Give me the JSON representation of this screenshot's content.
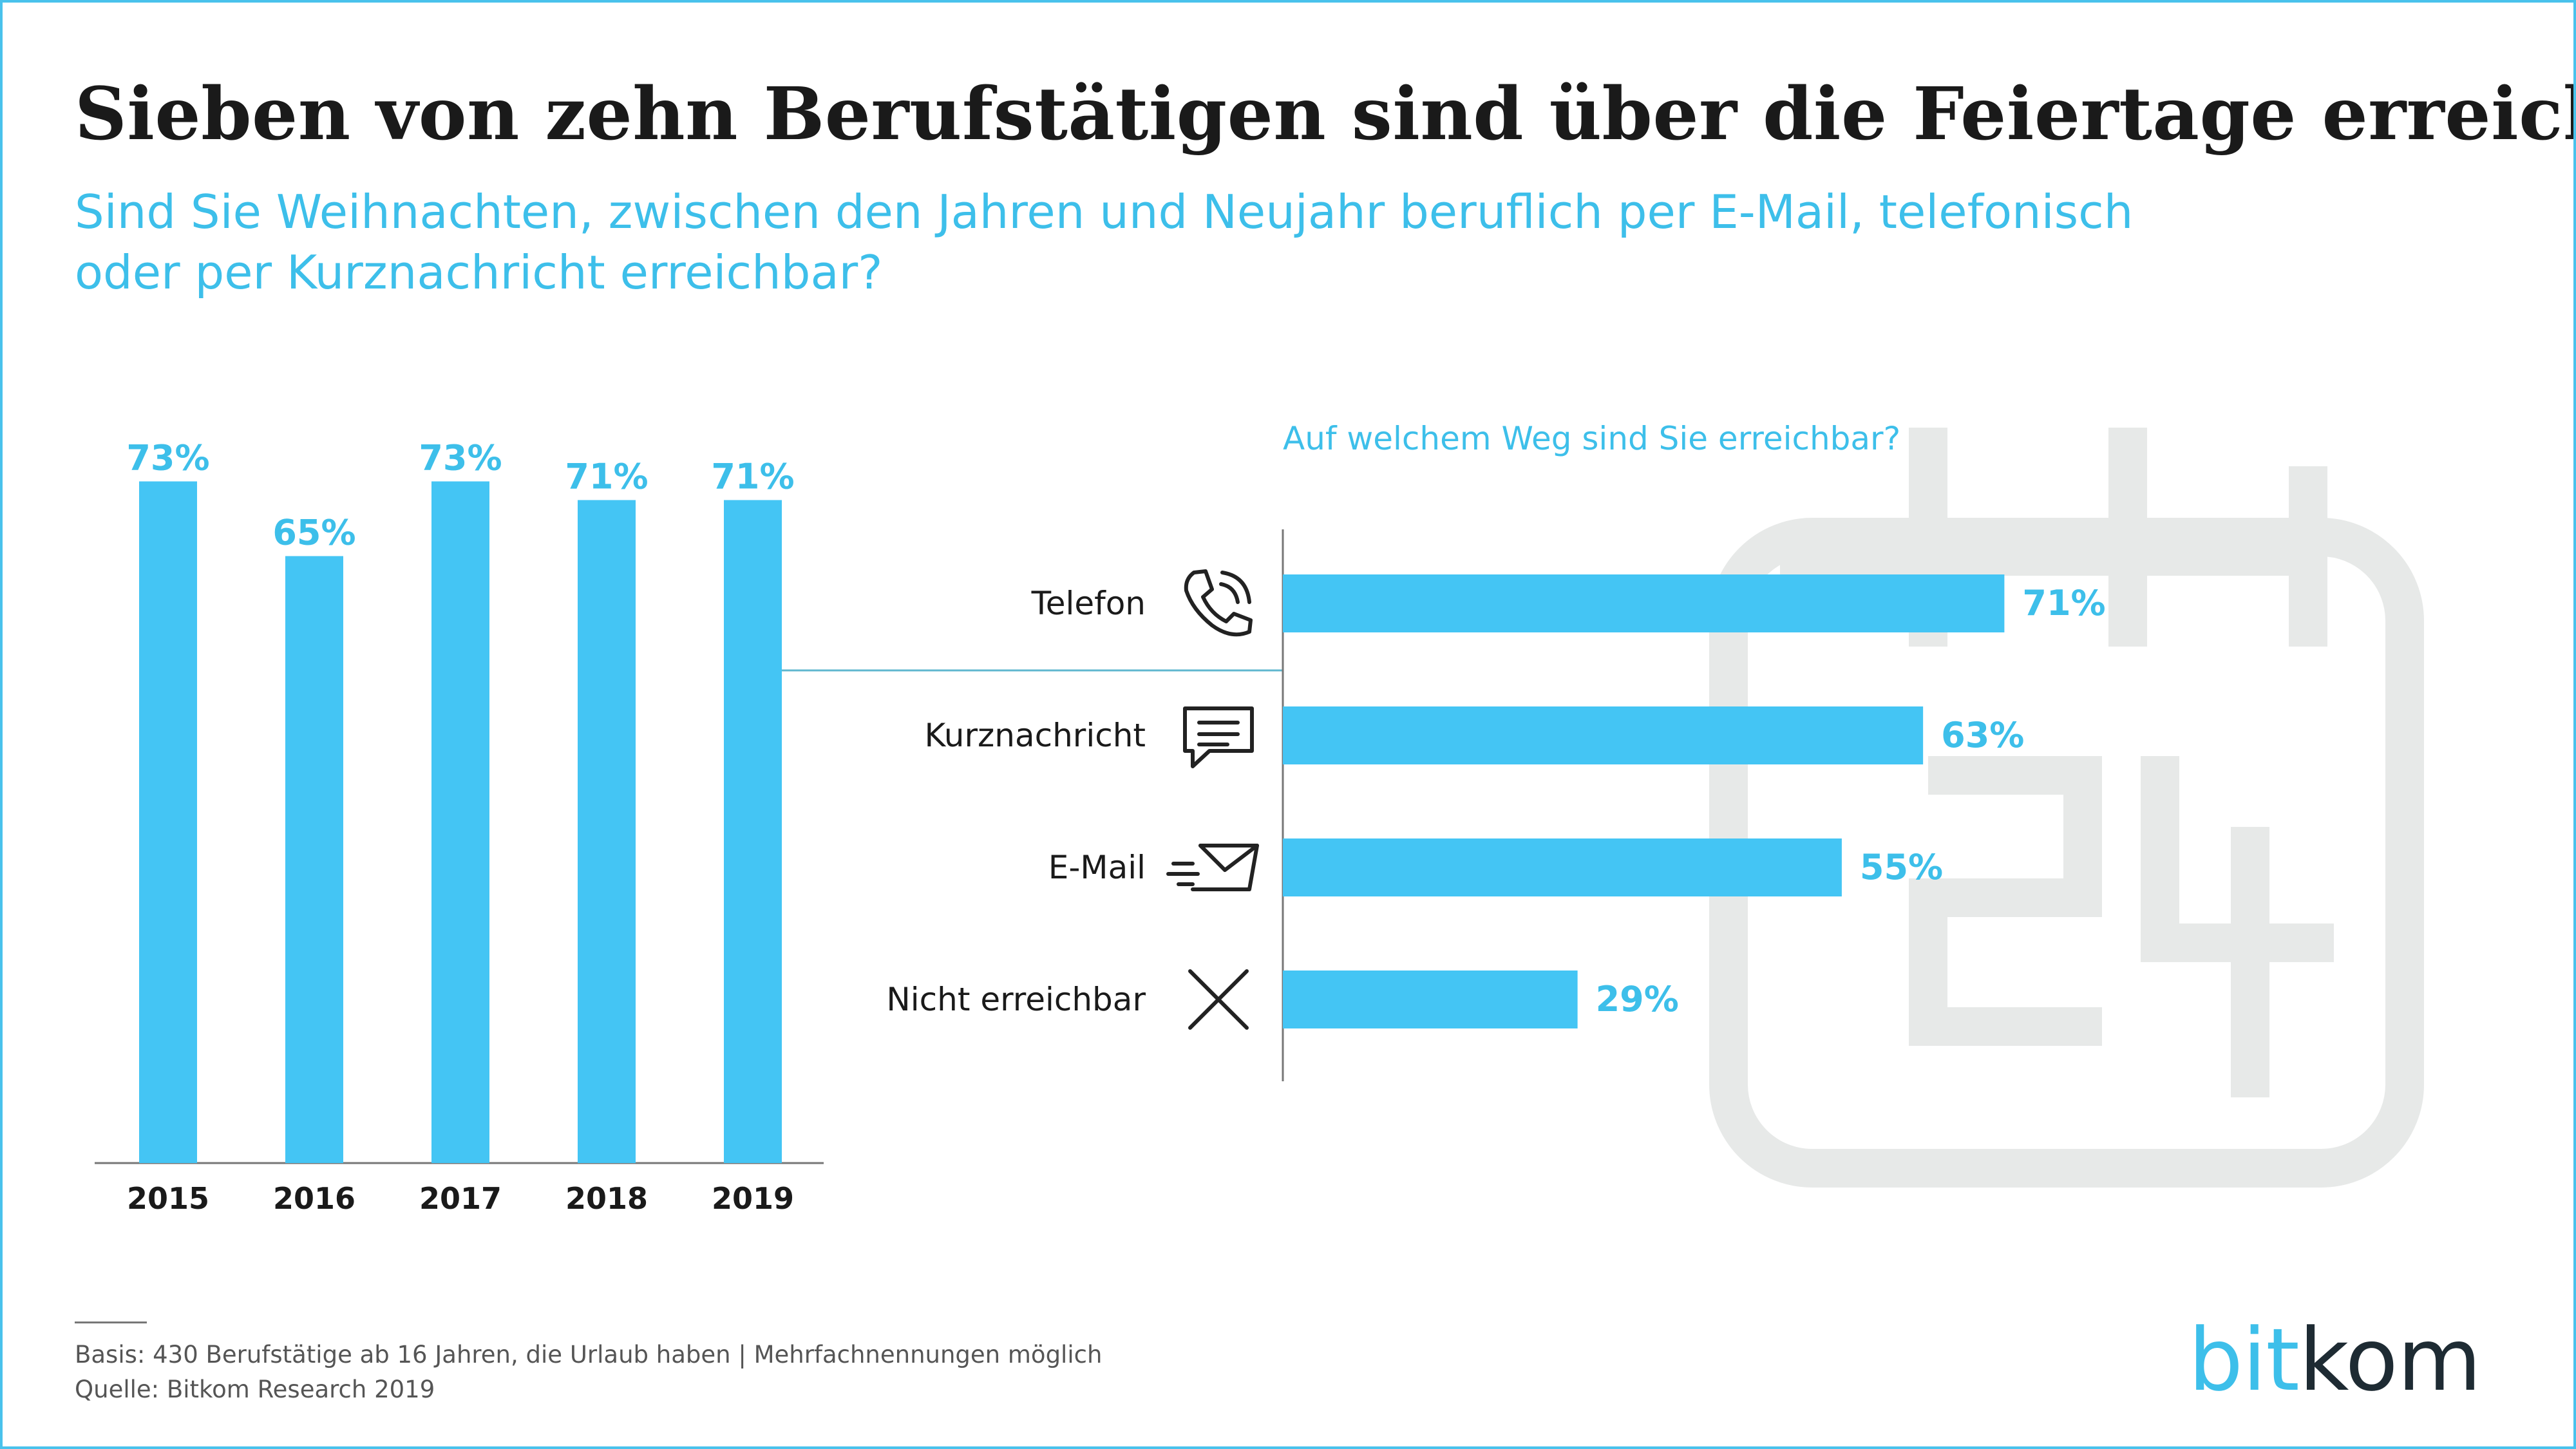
{
  "title": "Sieben von zehn Berufstätigen sind über die Feiertage erreichbar",
  "subtitle": "Sind Sie Weihnachten, zwischen den Jahren und Neujahr beruflich per E-Mail, telefonisch oder per Kurznachricht erreichbar?",
  "panel_title": "Auf welchem Weg sind Sie erreichbar?",
  "footer": {
    "basis": "Basis: 430 Berufstätige ab 16 Jahren, die Urlaub haben | Mehrfachnennungen möglich",
    "source": "Quelle: Bitkom Research 2019"
  },
  "logo": {
    "part1": "bit",
    "part2": "kom"
  },
  "colors": {
    "bar": "#44c5f4",
    "accent": "#3dbfea",
    "watermark": "#e7e9e8",
    "text": "#1a1a1a"
  },
  "chart_data": [
    {
      "type": "bar",
      "categories": [
        "2015",
        "2016",
        "2017",
        "2018",
        "2019"
      ],
      "values": [
        73,
        65,
        73,
        71,
        71
      ],
      "value_labels": [
        "73%",
        "65%",
        "73%",
        "71%",
        "71%"
      ],
      "ylim": [
        0,
        100
      ],
      "grid": false
    },
    {
      "type": "bar",
      "orientation": "horizontal",
      "categories": [
        "Telefon",
        "Kurznachricht",
        "E-Mail",
        "Nicht erreichbar"
      ],
      "icons": [
        "phone-icon",
        "message-icon",
        "email-icon",
        "cross-icon"
      ],
      "values": [
        71,
        63,
        55,
        29
      ],
      "value_labels": [
        "71%",
        "63%",
        "55%",
        "29%"
      ],
      "xlim": [
        0,
        100
      ],
      "grid": false
    }
  ]
}
